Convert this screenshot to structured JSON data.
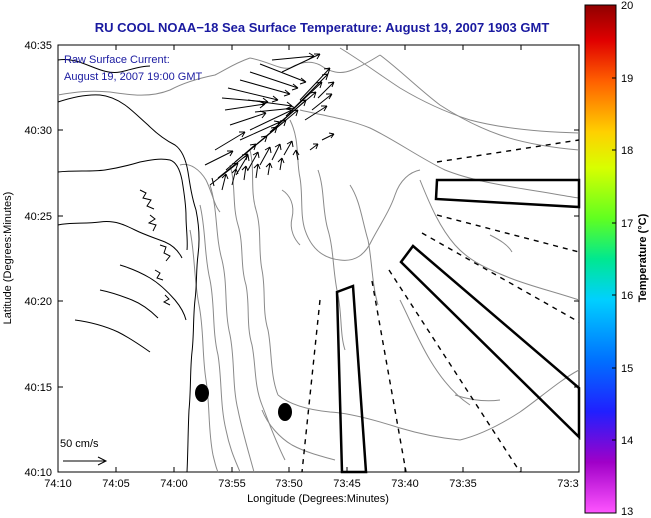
{
  "title": "RU COOL  NOAA−18  Sea Surface Temperature:  August 19, 2007 1903 GMT",
  "annotation": {
    "line1": "Raw Surface Current:",
    "line2": "August 19, 2007 19:00 GMT"
  },
  "scale_bar_label": "50 cm/s",
  "axes": {
    "xlabel": "Longitude (Degrees:Minutes)",
    "ylabel": "Latitude (Degrees:Minutes)",
    "xticks": [
      "74:10",
      "74:05",
      "74:00",
      "73:55",
      "73:50",
      "73:45",
      "73:40",
      "73:35",
      "73:3"
    ],
    "yticks": [
      "40:35",
      "40:30",
      "40:25",
      "40:20",
      "40:15",
      "40:10"
    ]
  },
  "colorbar": {
    "label": "Temperature (°C)",
    "ticks": [
      "20",
      "19",
      "18",
      "17",
      "16",
      "15",
      "14",
      "13"
    ],
    "min": 13,
    "max": 20
  },
  "colors": {
    "title": "#1a1aa0",
    "contour": "#8a8a8a"
  }
}
